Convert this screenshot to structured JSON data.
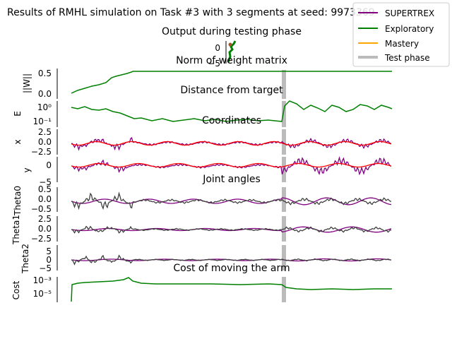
{
  "figure": {
    "suptitle": "Results of RMHL simulation on Task #3 with 3 segments at seed: 9973369"
  },
  "legend": {
    "placement": "top-right",
    "entries": [
      {
        "label": "SUPERTREX",
        "color": "#800080"
      },
      {
        "label": "Exploratory",
        "color": "#008000"
      },
      {
        "label": "Mastery",
        "color": "#ffa500"
      },
      {
        "label": "Test phase",
        "color": "#bbbbbb"
      }
    ]
  },
  "chart_data": [
    {
      "id": "output",
      "type": "line",
      "title": "Output during testing phase",
      "ylim": [
        -5,
        2
      ],
      "yticks": [
        "0",
        "−5"
      ]
    },
    {
      "id": "weight-norm",
      "type": "line",
      "title": "Norm of weight matrix",
      "ylabel": "||W||",
      "ylim": [
        -0.05,
        0.55
      ],
      "yticks": [
        "0.5",
        "0.0"
      ],
      "series": [
        {
          "name": "Exploratory",
          "color": "#008000",
          "start": 0.0,
          "plateau": 0.52,
          "plateau_at": 0.19
        }
      ],
      "test_phase_start": 0.67
    },
    {
      "id": "distance",
      "type": "line",
      "title": "Distance from target",
      "ylabel": "E",
      "yscale": "log",
      "yticks": [
        "10⁰",
        "10⁻¹"
      ],
      "series": [
        {
          "name": "Exploratory",
          "color": "#008000"
        }
      ],
      "test_phase_start": 0.67
    },
    {
      "id": "coord-x",
      "type": "line",
      "title": "Coordinates",
      "ylabel": "x",
      "ylim": [
        -3,
        3
      ],
      "yticks": [
        "2.5",
        "0.0",
        "−2.5"
      ],
      "series": [
        {
          "name": "SUPERTREX",
          "color": "#800080"
        },
        {
          "name": "target",
          "color": "#ff0000"
        }
      ],
      "test_phase_start": 0.67
    },
    {
      "id": "coord-y",
      "type": "line",
      "ylabel": "y",
      "ylim": [
        -5,
        2
      ],
      "yticks": [
        "0",
        "−5"
      ],
      "series": [
        {
          "name": "SUPERTREX",
          "color": "#800080"
        },
        {
          "name": "target",
          "color": "#ff0000"
        }
      ],
      "test_phase_start": 0.67
    },
    {
      "id": "theta0",
      "type": "line",
      "title": "Joint angles",
      "ylabel": "Theta0",
      "ylim": [
        -0.75,
        0.75
      ],
      "yticks": [
        "0.5",
        "0.0",
        "−0.5"
      ],
      "test_phase_start": 0.67
    },
    {
      "id": "theta1",
      "type": "line",
      "ylabel": "Theta1",
      "ylim": [
        -3,
        3
      ],
      "yticks": [
        "2.5",
        "0.0",
        "−2.5"
      ],
      "test_phase_start": 0.67
    },
    {
      "id": "theta2",
      "type": "line",
      "ylabel": "Theta2",
      "ylim": [
        -6,
        6
      ],
      "yticks": [
        "5",
        "0",
        "−5"
      ],
      "test_phase_start": 0.67
    },
    {
      "id": "cost",
      "type": "line",
      "title": "Cost of moving the arm",
      "ylabel": "Cost",
      "yscale": "log",
      "yticks": [
        "10⁻³",
        "10⁻⁵"
      ],
      "series": [
        {
          "name": "Exploratory",
          "color": "#008000"
        }
      ],
      "test_phase_start": 0.67
    }
  ]
}
